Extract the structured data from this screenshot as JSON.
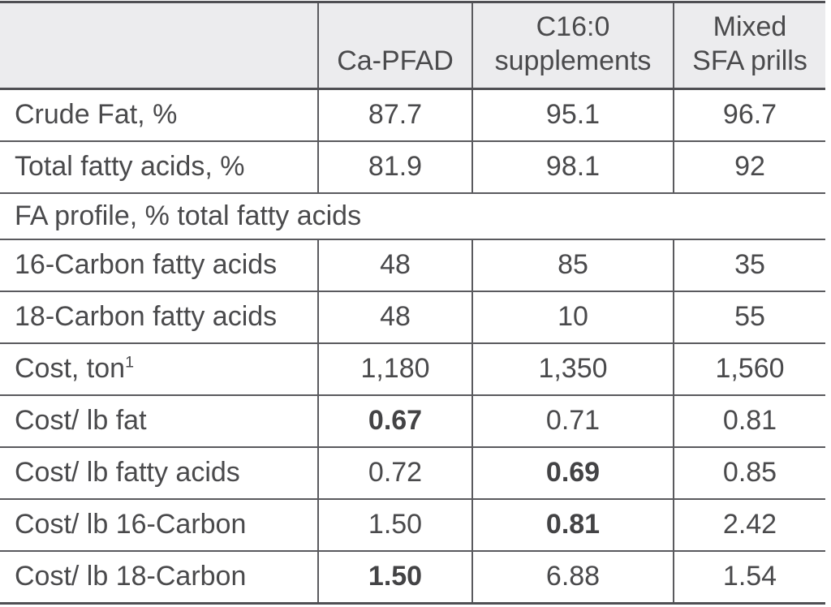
{
  "colors": {
    "header_bg": "#ececee",
    "text": "#4a4a4c",
    "border": "#5a5a5e",
    "heavy_border": "#4f4f53"
  },
  "table": {
    "columns": [
      {
        "label": ""
      },
      {
        "label": "Ca-PFAD"
      },
      {
        "label": "C16:0\nsupplements"
      },
      {
        "label": "Mixed\nSFA prills"
      }
    ],
    "rows": [
      {
        "label": "Crude Fat, %",
        "cells": [
          {
            "text": "87.7",
            "bold": false
          },
          {
            "text": "95.1",
            "bold": false
          },
          {
            "text": "96.7",
            "bold": false
          }
        ]
      },
      {
        "label": "Total fatty acids, %",
        "cells": [
          {
            "text": "81.9",
            "bold": false
          },
          {
            "text": "98.1",
            "bold": false
          },
          {
            "text": "92",
            "bold": false
          }
        ]
      },
      {
        "label": "FA profile, % total fatty acids",
        "section": true
      },
      {
        "label": "16-Carbon fatty acids",
        "cells": [
          {
            "text": "48",
            "bold": false
          },
          {
            "text": "85",
            "bold": false
          },
          {
            "text": "35",
            "bold": false
          }
        ]
      },
      {
        "label": "18-Carbon fatty acids",
        "cells": [
          {
            "text": "48",
            "bold": false
          },
          {
            "text": "10",
            "bold": false
          },
          {
            "text": "55",
            "bold": false
          }
        ]
      },
      {
        "label": "Cost, ton",
        "label_superscript": "1",
        "cells": [
          {
            "text": "1,180",
            "bold": false
          },
          {
            "text": "1,350",
            "bold": false
          },
          {
            "text": "1,560",
            "bold": false
          }
        ]
      },
      {
        "label": "Cost/ lb fat",
        "cells": [
          {
            "text": "0.67",
            "bold": true
          },
          {
            "text": "0.71",
            "bold": false
          },
          {
            "text": "0.81",
            "bold": false
          }
        ]
      },
      {
        "label": "Cost/ lb fatty acids",
        "cells": [
          {
            "text": "0.72",
            "bold": false
          },
          {
            "text": "0.69",
            "bold": true
          },
          {
            "text": "0.85",
            "bold": false
          }
        ]
      },
      {
        "label": "Cost/ lb 16-Carbon",
        "cells": [
          {
            "text": "1.50",
            "bold": false
          },
          {
            "text": "0.81",
            "bold": true
          },
          {
            "text": "2.42",
            "bold": false
          }
        ]
      },
      {
        "label": "Cost/ lb 18-Carbon",
        "cells": [
          {
            "text": "1.50",
            "bold": true
          },
          {
            "text": "6.88",
            "bold": false
          },
          {
            "text": "1.54",
            "bold": false
          }
        ]
      }
    ]
  }
}
